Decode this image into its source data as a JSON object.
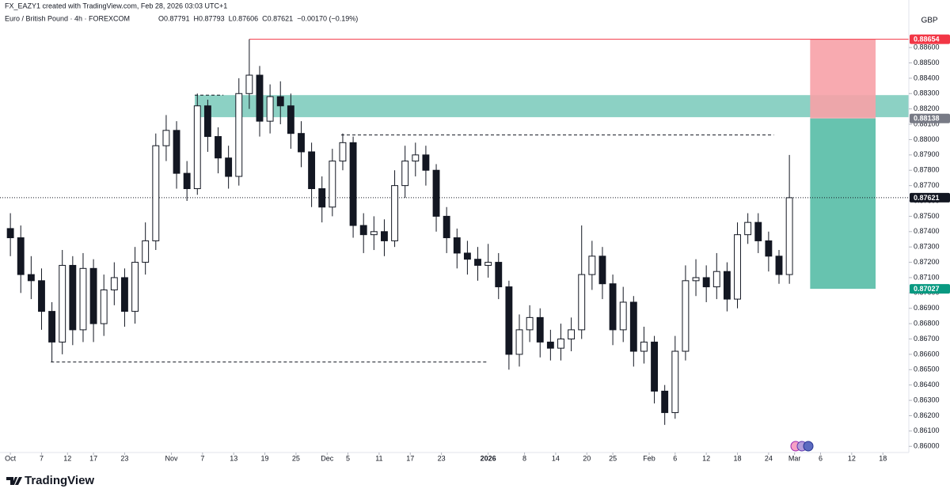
{
  "header": {
    "credit": "FX_EAZY1 created with TradingView.com, Feb 28, 2026 03:03 UTC+1",
    "symbol": "Euro / British Pound · 4h · FOREXCOM",
    "ohlc": [
      "O0.87791",
      "H0.87793",
      "L0.87606",
      "C0.87621",
      "−0.00170 (−0.19%)"
    ],
    "currency": "GBP"
  },
  "footer": {
    "brand": "TradingView"
  },
  "chart_data": {
    "type": "candlestick",
    "up_color": "#ffffff",
    "down_color": "#131722",
    "grid": false,
    "x": [
      0,
      2,
      4,
      6,
      8,
      10,
      12,
      14,
      16,
      18,
      20,
      22,
      24,
      26,
      28,
      30,
      32,
      34,
      36,
      38,
      40,
      42,
      44,
      46,
      48,
      50,
      52,
      54,
      56,
      58,
      60,
      62,
      64,
      66,
      68,
      70,
      72,
      74,
      76,
      78,
      80,
      82,
      84,
      86,
      88,
      90,
      92,
      94,
      96,
      98,
      100,
      102,
      104,
      106,
      108,
      110,
      112,
      114,
      116,
      118,
      120,
      122,
      124,
      126,
      128,
      130,
      132,
      134,
      136,
      138,
      140,
      142,
      144,
      146,
      148,
      150
    ],
    "ohlc": [
      [
        0.8742,
        0.8752,
        0.8724,
        0.8736
      ],
      [
        0.8736,
        0.8744,
        0.87,
        0.8712
      ],
      [
        0.8712,
        0.8724,
        0.8696,
        0.8708
      ],
      [
        0.8708,
        0.8716,
        0.8676,
        0.8688
      ],
      [
        0.8688,
        0.8694,
        0.8655,
        0.8668
      ],
      [
        0.8668,
        0.8728,
        0.866,
        0.8718
      ],
      [
        0.8718,
        0.8724,
        0.8666,
        0.8676
      ],
      [
        0.8676,
        0.8726,
        0.8668,
        0.8716
      ],
      [
        0.8716,
        0.8722,
        0.8668,
        0.868
      ],
      [
        0.868,
        0.8712,
        0.8672,
        0.8702
      ],
      [
        0.8702,
        0.872,
        0.8692,
        0.871
      ],
      [
        0.871,
        0.8716,
        0.8678,
        0.8688
      ],
      [
        0.8688,
        0.873,
        0.868,
        0.872
      ],
      [
        0.872,
        0.8746,
        0.8712,
        0.8734
      ],
      [
        0.8734,
        0.8804,
        0.8728,
        0.8796
      ],
      [
        0.8796,
        0.8816,
        0.8786,
        0.8806
      ],
      [
        0.8806,
        0.8812,
        0.8768,
        0.8778
      ],
      [
        0.8778,
        0.8786,
        0.876,
        0.8768
      ],
      [
        0.8768,
        0.883,
        0.8764,
        0.8822
      ],
      [
        0.8822,
        0.8826,
        0.8792,
        0.8802
      ],
      [
        0.8802,
        0.8808,
        0.8778,
        0.8788
      ],
      [
        0.8788,
        0.8796,
        0.8768,
        0.8776
      ],
      [
        0.8776,
        0.884,
        0.877,
        0.883
      ],
      [
        0.883,
        0.88654,
        0.882,
        0.8842
      ],
      [
        0.8842,
        0.8848,
        0.8802,
        0.8812
      ],
      [
        0.8812,
        0.8836,
        0.8804,
        0.8828
      ],
      [
        0.8828,
        0.8838,
        0.881,
        0.8822
      ],
      [
        0.8822,
        0.883,
        0.8794,
        0.8804
      ],
      [
        0.8804,
        0.8812,
        0.8782,
        0.8792
      ],
      [
        0.8792,
        0.8798,
        0.8756,
        0.8768
      ],
      [
        0.8768,
        0.8776,
        0.8746,
        0.8756
      ],
      [
        0.8756,
        0.8794,
        0.875,
        0.8786
      ],
      [
        0.8786,
        0.8804,
        0.878,
        0.8798
      ],
      [
        0.8798,
        0.8802,
        0.8736,
        0.8744
      ],
      [
        0.8744,
        0.8752,
        0.8726,
        0.8738
      ],
      [
        0.8738,
        0.875,
        0.8728,
        0.874
      ],
      [
        0.874,
        0.8748,
        0.8724,
        0.8734
      ],
      [
        0.8734,
        0.878,
        0.873,
        0.877
      ],
      [
        0.877,
        0.8796,
        0.8762,
        0.8786
      ],
      [
        0.8786,
        0.8798,
        0.8776,
        0.879
      ],
      [
        0.879,
        0.8796,
        0.877,
        0.878
      ],
      [
        0.878,
        0.8784,
        0.874,
        0.875
      ],
      [
        0.875,
        0.8756,
        0.8726,
        0.8736
      ],
      [
        0.8736,
        0.8742,
        0.8716,
        0.8726
      ],
      [
        0.8726,
        0.8734,
        0.8712,
        0.8722
      ],
      [
        0.8722,
        0.873,
        0.8708,
        0.8718
      ],
      [
        0.8718,
        0.8732,
        0.871,
        0.872
      ],
      [
        0.872,
        0.8726,
        0.8696,
        0.8704
      ],
      [
        0.8704,
        0.8708,
        0.865,
        0.866
      ],
      [
        0.866,
        0.8686,
        0.8652,
        0.8676
      ],
      [
        0.8676,
        0.8692,
        0.8668,
        0.8684
      ],
      [
        0.8684,
        0.869,
        0.8658,
        0.8668
      ],
      [
        0.8668,
        0.8676,
        0.8656,
        0.8664
      ],
      [
        0.8664,
        0.868,
        0.8656,
        0.867
      ],
      [
        0.867,
        0.8684,
        0.8662,
        0.8676
      ],
      [
        0.8676,
        0.8744,
        0.867,
        0.8712
      ],
      [
        0.8712,
        0.8734,
        0.8702,
        0.8724
      ],
      [
        0.8724,
        0.873,
        0.8696,
        0.8706
      ],
      [
        0.8706,
        0.8712,
        0.8666,
        0.8676
      ],
      [
        0.8676,
        0.8704,
        0.8668,
        0.8694
      ],
      [
        0.8694,
        0.8698,
        0.8652,
        0.8662
      ],
      [
        0.8662,
        0.8678,
        0.8654,
        0.8668
      ],
      [
        0.8668,
        0.8672,
        0.8628,
        0.8636
      ],
      [
        0.8636,
        0.864,
        0.8614,
        0.8622
      ],
      [
        0.8622,
        0.8672,
        0.8618,
        0.8662
      ],
      [
        0.8662,
        0.8718,
        0.8656,
        0.8708
      ],
      [
        0.8708,
        0.8722,
        0.8698,
        0.871
      ],
      [
        0.871,
        0.8718,
        0.8694,
        0.8704
      ],
      [
        0.8704,
        0.8726,
        0.8696,
        0.8714
      ],
      [
        0.8714,
        0.872,
        0.8688,
        0.8696
      ],
      [
        0.8696,
        0.8746,
        0.869,
        0.8738
      ],
      [
        0.8738,
        0.8752,
        0.8732,
        0.8746
      ],
      [
        0.8746,
        0.8752,
        0.8726,
        0.8734
      ],
      [
        0.8734,
        0.874,
        0.8714,
        0.8724
      ],
      [
        0.8724,
        0.8728,
        0.8706,
        0.8712
      ],
      [
        0.8712,
        0.879,
        0.8706,
        0.87621
      ]
    ],
    "xlim": [
      -2,
      173
    ],
    "ylim": [
      0.8596,
      0.8891
    ],
    "xticks": [
      {
        "value": 0,
        "label": "Oct"
      },
      {
        "value": 6,
        "label": "7"
      },
      {
        "value": 11,
        "label": "12"
      },
      {
        "value": 16,
        "label": "17"
      },
      {
        "value": 22,
        "label": "23"
      },
      {
        "value": 31,
        "label": "Nov"
      },
      {
        "value": 37,
        "label": "7"
      },
      {
        "value": 43,
        "label": "13"
      },
      {
        "value": 49,
        "label": "19"
      },
      {
        "value": 55,
        "label": "25"
      },
      {
        "value": 61,
        "label": "Dec"
      },
      {
        "value": 65,
        "label": "5"
      },
      {
        "value": 71,
        "label": "11"
      },
      {
        "value": 77,
        "label": "17"
      },
      {
        "value": 83,
        "label": "23"
      },
      {
        "value": 92,
        "label": "2026"
      },
      {
        "value": 99,
        "label": "8"
      },
      {
        "value": 105,
        "label": "14"
      },
      {
        "value": 111,
        "label": "20"
      },
      {
        "value": 116,
        "label": "25"
      },
      {
        "value": 123,
        "label": "Feb"
      },
      {
        "value": 128,
        "label": "6"
      },
      {
        "value": 134,
        "label": "12"
      },
      {
        "value": 140,
        "label": "18"
      },
      {
        "value": 146,
        "label": "24"
      },
      {
        "value": 151,
        "label": "Mar"
      },
      {
        "value": 156,
        "label": "6"
      },
      {
        "value": 162,
        "label": "12"
      },
      {
        "value": 168,
        "label": "18"
      }
    ],
    "yticks": [
      {
        "value": 0.86,
        "label": "0.86000"
      },
      {
        "value": 0.861,
        "label": "0.86100"
      },
      {
        "value": 0.862,
        "label": "0.86200"
      },
      {
        "value": 0.863,
        "label": "0.86300"
      },
      {
        "value": 0.864,
        "label": "0.86400"
      },
      {
        "value": 0.865,
        "label": "0.86500"
      },
      {
        "value": 0.866,
        "label": "0.86600"
      },
      {
        "value": 0.867,
        "label": "0.86700"
      },
      {
        "value": 0.868,
        "label": "0.86800"
      },
      {
        "value": 0.869,
        "label": "0.86900"
      },
      {
        "value": 0.87,
        "label": "0.87000"
      },
      {
        "value": 0.871,
        "label": "0.87100"
      },
      {
        "value": 0.872,
        "label": "0.87200"
      },
      {
        "value": 0.873,
        "label": "0.87300"
      },
      {
        "value": 0.874,
        "label": "0.87400"
      },
      {
        "value": 0.875,
        "label": "0.87500"
      },
      {
        "value": 0.876,
        "label": "0.87600"
      },
      {
        "value": 0.877,
        "label": "0.87700"
      },
      {
        "value": 0.878,
        "label": "0.87800"
      },
      {
        "value": 0.879,
        "label": "0.87900"
      },
      {
        "value": 0.88,
        "label": "0.88000"
      },
      {
        "value": 0.881,
        "label": "0.88100"
      },
      {
        "value": 0.882,
        "label": "0.88200"
      },
      {
        "value": 0.883,
        "label": "0.88300"
      },
      {
        "value": 0.884,
        "label": "0.88400"
      },
      {
        "value": 0.885,
        "label": "0.88500"
      },
      {
        "value": 0.886,
        "label": "0.88600"
      }
    ],
    "zone": {
      "from": 0.88146,
      "to": 0.8829,
      "x_start": 35.5,
      "color": "#66c2b0"
    },
    "levels": [
      {
        "value": 0.88654,
        "x": [
          46,
          173
        ],
        "color": "#f23645",
        "style": "solid"
      },
      {
        "value": 0.8829,
        "x": [
          35.5,
          41
        ],
        "color": "#131722",
        "style": "dashed"
      },
      {
        "value": 0.8803,
        "x": [
          63.7,
          147
        ],
        "color": "#131722",
        "style": "dashed"
      },
      {
        "value": 0.8655,
        "x": [
          7.8,
          92
        ],
        "color": "#131722",
        "style": "dashed"
      },
      {
        "value": 0.87621,
        "x": [
          -2,
          173
        ],
        "color": "#131722",
        "style": "dotted"
      }
    ],
    "position": {
      "stop": 0.88654,
      "entry": 0.88138,
      "target": 0.87027,
      "x": [
        154,
        166.6
      ],
      "stop_color": "#f7a1a7",
      "target_color": "#5fc0ab"
    },
    "price_labels": [
      {
        "value": 0.88654,
        "label": "0.88654",
        "color": "#f23645"
      },
      {
        "value": 0.88138,
        "label": "0.88138",
        "color": "#787b86"
      },
      {
        "value": 0.87621,
        "label": "0.87621",
        "color": "#131722"
      },
      {
        "value": 0.87027,
        "label": "0.87027",
        "color": "#089981"
      }
    ]
  }
}
